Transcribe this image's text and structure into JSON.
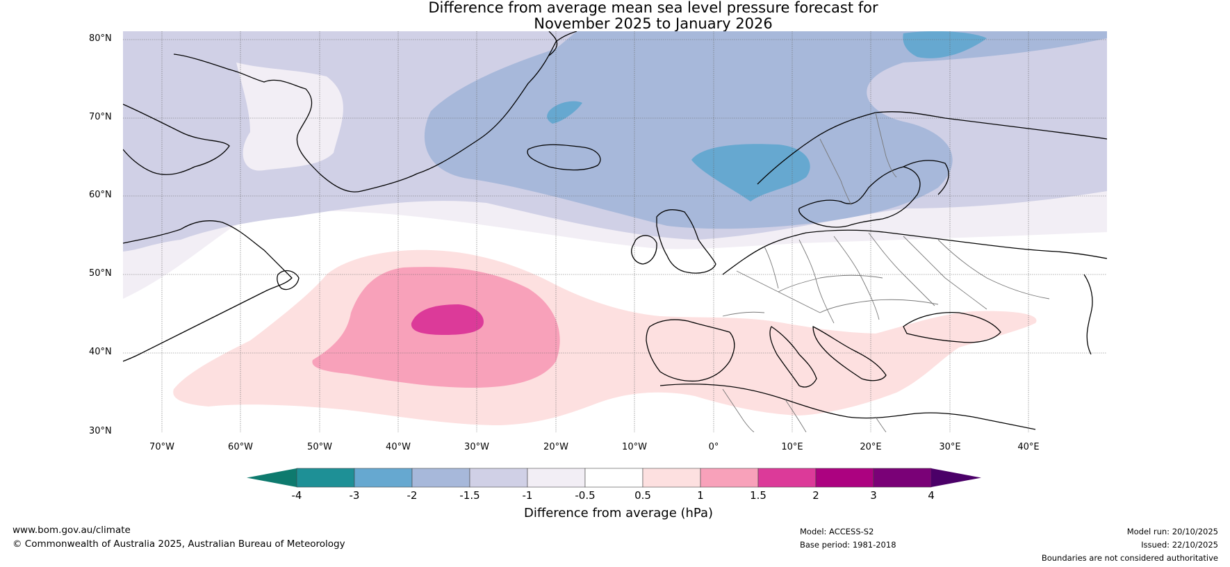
{
  "title": {
    "line1": "Difference from average mean sea level pressure forecast for",
    "line2": "November 2025 to January 2026"
  },
  "map": {
    "latitude_labels": [
      "80°N",
      "70°N",
      "60°N",
      "50°N",
      "40°N",
      "30°N"
    ],
    "longitude_labels": [
      "70°W",
      "60°W",
      "50°W",
      "40°W",
      "30°W",
      "20°W",
      "10°W",
      "0°",
      "10°E",
      "20°E",
      "30°E",
      "40°E"
    ],
    "lon_range": [
      -75,
      50
    ],
    "lat_range": [
      30,
      81
    ]
  },
  "legend": {
    "label": "Difference from average (hPa)",
    "ticks": [
      "-4",
      "-3",
      "-2",
      "-1.5",
      "-1",
      "-0.5",
      "0.5",
      "1",
      "1.5",
      "2",
      "3",
      "4"
    ],
    "colors": [
      "#0e7a6e",
      "#1e9096",
      "#66a8d0",
      "#a7b8da",
      "#d0d0e6",
      "#f2eef5",
      "#ffffff",
      "#fde0e0",
      "#f8a1ba",
      "#dc3a99",
      "#ac0280",
      "#7a0177",
      "#4b0068"
    ]
  },
  "footer": {
    "website": "www.bom.gov.au/climate",
    "copyright": "© Commonwealth of Australia 2025, Australian Bureau of Meteorology",
    "model": "Model: ACCESS-S2",
    "base_period": "Base period: 1981-2018",
    "model_run": "Model run: 20/10/2025",
    "issued": "Issued: 22/10/2025",
    "disclaimer": "Boundaries are not considered authoritative"
  }
}
